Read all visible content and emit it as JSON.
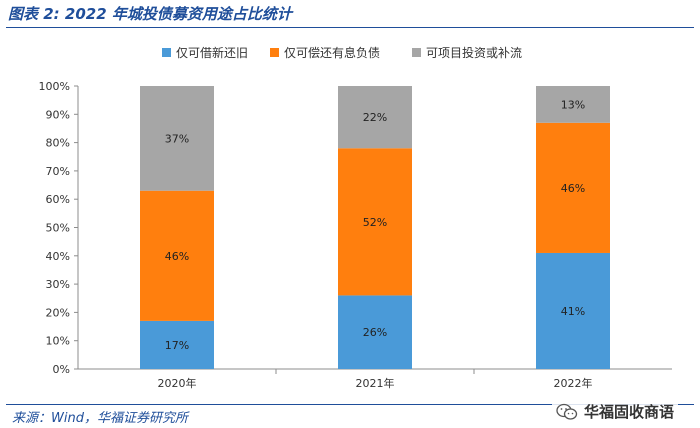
{
  "header": {
    "figure_title": "图表 2: 2022 年城投债募资用途占比统计"
  },
  "footer": {
    "source": "来源：Wind，华福证券研究所",
    "watermark": "华福固收商语"
  },
  "chart_data": {
    "type": "bar",
    "stacked": true,
    "categories": [
      "2020年",
      "2021年",
      "2022年"
    ],
    "series": [
      {
        "name": "仅可借新还旧",
        "values": [
          17,
          26,
          41
        ],
        "labels": [
          "17%",
          "26%",
          "41%"
        ],
        "color": "#4a9ad8"
      },
      {
        "name": "仅可偿还有息负债",
        "values": [
          46,
          52,
          46
        ],
        "labels": [
          "46%",
          "52%",
          "46%"
        ],
        "color": "#ff7f0e"
      },
      {
        "name": "可项目投资或补流",
        "values": [
          37,
          22,
          13
        ],
        "labels": [
          "37%",
          "22%",
          "13%"
        ],
        "color": "#a6a6a6"
      }
    ],
    "ylim": [
      0,
      100
    ],
    "yticks": [
      "0%",
      "10%",
      "20%",
      "30%",
      "40%",
      "50%",
      "60%",
      "70%",
      "80%",
      "90%",
      "100%"
    ],
    "legend_position": "top",
    "grid": false
  }
}
